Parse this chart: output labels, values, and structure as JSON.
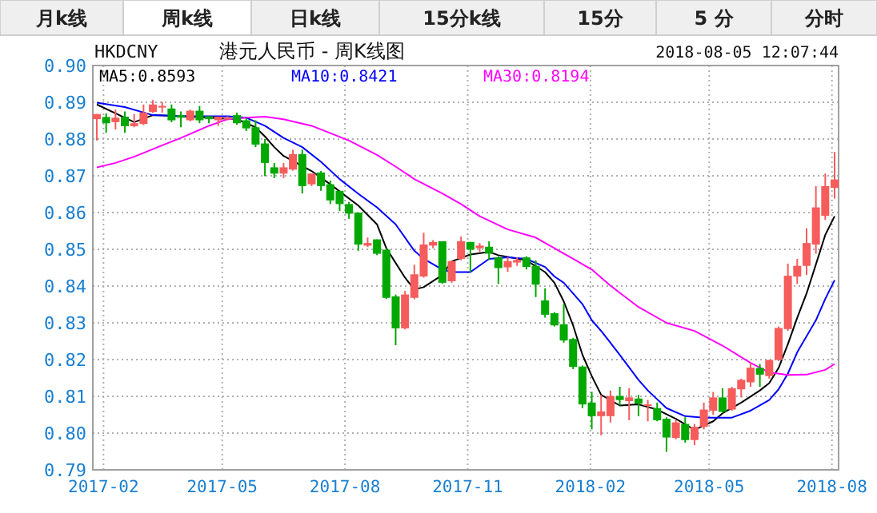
{
  "chart_data": {
    "type": "candlestick",
    "title": "港元人民币 - 周K线图",
    "subtitle": "HKDCNY",
    "annotations": [
      "2018-08-05 12:07:44",
      "月k线",
      "周k线",
      "日k线",
      "15分k线",
      "15分",
      "5 分",
      "分时"
    ],
    "x": [
      "2017-01-27",
      "2017-02-03",
      "2017-02-10",
      "2017-02-17",
      "2017-02-24",
      "2017-03-03",
      "2017-03-10",
      "2017-03-17",
      "2017-03-24",
      "2017-03-31",
      "2017-04-07",
      "2017-04-14",
      "2017-04-21",
      "2017-04-28",
      "2017-05-05",
      "2017-05-12",
      "2017-05-19",
      "2017-05-26",
      "2017-06-02",
      "2017-06-09",
      "2017-06-16",
      "2017-06-23",
      "2017-06-30",
      "2017-07-07",
      "2017-07-14",
      "2017-07-21",
      "2017-07-28",
      "2017-08-04",
      "2017-08-11",
      "2017-08-18",
      "2017-08-25",
      "2017-09-01",
      "2017-09-08",
      "2017-09-15",
      "2017-09-22",
      "2017-09-29",
      "2017-10-06",
      "2017-10-13",
      "2017-10-20",
      "2017-10-27",
      "2017-11-03",
      "2017-11-10",
      "2017-11-17",
      "2017-11-24",
      "2017-12-01",
      "2017-12-08",
      "2017-12-15",
      "2017-12-22",
      "2017-12-29",
      "2018-01-05",
      "2018-01-12",
      "2018-01-19",
      "2018-01-26",
      "2018-02-02",
      "2018-02-09",
      "2018-02-16",
      "2018-02-23",
      "2018-03-02",
      "2018-03-09",
      "2018-03-16",
      "2018-03-23",
      "2018-03-30",
      "2018-04-06",
      "2018-04-13",
      "2018-04-20",
      "2018-04-27",
      "2018-05-04",
      "2018-05-11",
      "2018-05-18",
      "2018-05-25",
      "2018-06-01",
      "2018-06-08",
      "2018-06-15",
      "2018-06-22",
      "2018-06-29",
      "2018-07-06",
      "2018-07-13",
      "2018-07-20",
      "2018-07-27",
      "2018-08-03"
    ],
    "ohlc": [
      [
        0.8854,
        0.8868,
        0.8796,
        0.8868
      ],
      [
        0.886,
        0.887,
        0.8817,
        0.8843
      ],
      [
        0.8846,
        0.888,
        0.8826,
        0.8858
      ],
      [
        0.8861,
        0.8875,
        0.8817,
        0.8835
      ],
      [
        0.8835,
        0.8868,
        0.8832,
        0.8843
      ],
      [
        0.8841,
        0.8894,
        0.8838,
        0.8872
      ],
      [
        0.8874,
        0.8906,
        0.8871,
        0.8894
      ],
      [
        0.8887,
        0.8901,
        0.8872,
        0.889
      ],
      [
        0.8883,
        0.8894,
        0.8846,
        0.8851
      ],
      [
        0.8865,
        0.8875,
        0.8832,
        0.8858
      ],
      [
        0.8851,
        0.888,
        0.8848,
        0.8877
      ],
      [
        0.8877,
        0.889,
        0.8843,
        0.8851
      ],
      [
        0.8862,
        0.8862,
        0.8843,
        0.8854
      ],
      [
        0.8851,
        0.8861,
        0.8836,
        0.8861
      ],
      [
        0.8854,
        0.8862,
        0.8851,
        0.8858
      ],
      [
        0.8865,
        0.8872,
        0.8839,
        0.8843
      ],
      [
        0.8851,
        0.8858,
        0.8822,
        0.8829
      ],
      [
        0.8832,
        0.8851,
        0.8778,
        0.8785
      ],
      [
        0.8788,
        0.88,
        0.8699,
        0.8735
      ],
      [
        0.8723,
        0.8735,
        0.8694,
        0.8706
      ],
      [
        0.8706,
        0.8735,
        0.8694,
        0.8723
      ],
      [
        0.8717,
        0.8771,
        0.8714,
        0.8759
      ],
      [
        0.8759,
        0.8771,
        0.8652,
        0.8672
      ],
      [
        0.8677,
        0.8706,
        0.8672,
        0.8706
      ],
      [
        0.8709,
        0.8713,
        0.8659,
        0.8672
      ],
      [
        0.8677,
        0.8687,
        0.8623,
        0.8633
      ],
      [
        0.8659,
        0.8659,
        0.8604,
        0.8623
      ],
      [
        0.8623,
        0.8629,
        0.8583,
        0.8597
      ],
      [
        0.86,
        0.86,
        0.8496,
        0.8513
      ],
      [
        0.851,
        0.8532,
        0.8506,
        0.8517
      ],
      [
        0.8527,
        0.8527,
        0.8484,
        0.8488
      ],
      [
        0.8499,
        0.8503,
        0.8365,
        0.8368
      ],
      [
        0.8372,
        0.8377,
        0.8239,
        0.8285
      ],
      [
        0.8285,
        0.8387,
        0.8282,
        0.8377
      ],
      [
        0.8368,
        0.8458,
        0.8364,
        0.8432
      ],
      [
        0.8426,
        0.8545,
        0.8423,
        0.8513
      ],
      [
        0.851,
        0.8525,
        0.8503,
        0.852
      ],
      [
        0.8522,
        0.8522,
        0.8406,
        0.8409
      ],
      [
        0.8413,
        0.8468,
        0.8409,
        0.8468
      ],
      [
        0.8474,
        0.8535,
        0.847,
        0.8522
      ],
      [
        0.852,
        0.852,
        0.8438,
        0.8499
      ],
      [
        0.8503,
        0.8517,
        0.8493,
        0.851
      ],
      [
        0.8507,
        0.8522,
        0.8471,
        0.8488
      ],
      [
        0.8478,
        0.8481,
        0.8406,
        0.8449
      ],
      [
        0.8451,
        0.8478,
        0.8439,
        0.8468
      ],
      [
        0.8464,
        0.8478,
        0.8455,
        0.8471
      ],
      [
        0.8478,
        0.8481,
        0.8445,
        0.8452
      ],
      [
        0.8455,
        0.847,
        0.837,
        0.8404
      ],
      [
        0.8361,
        0.8394,
        0.8314,
        0.8322
      ],
      [
        0.8326,
        0.8329,
        0.829,
        0.8293
      ],
      [
        0.8296,
        0.8351,
        0.8246,
        0.8252
      ],
      [
        0.8256,
        0.8259,
        0.8174,
        0.818
      ],
      [
        0.8181,
        0.8184,
        0.8068,
        0.8078
      ],
      [
        0.8083,
        0.8112,
        0.801,
        0.8046
      ],
      [
        0.8046,
        0.8104,
        0.7994,
        0.8059
      ],
      [
        0.8046,
        0.8116,
        0.8029,
        0.8101
      ],
      [
        0.8101,
        0.8126,
        0.8075,
        0.809
      ],
      [
        0.8087,
        0.8122,
        0.8035,
        0.8097
      ],
      [
        0.8094,
        0.8104,
        0.8046,
        0.808
      ],
      [
        0.8075,
        0.809,
        0.8032,
        0.8078
      ],
      [
        0.8068,
        0.8083,
        0.8032,
        0.8035
      ],
      [
        0.8039,
        0.8043,
        0.7949,
        0.7988
      ],
      [
        0.7987,
        0.8035,
        0.7983,
        0.8029
      ],
      [
        0.8025,
        0.8043,
        0.7974,
        0.7981
      ],
      [
        0.7981,
        0.8025,
        0.7967,
        0.8017
      ],
      [
        0.8017,
        0.8083,
        0.801,
        0.8064
      ],
      [
        0.8061,
        0.8112,
        0.805,
        0.8097
      ],
      [
        0.8097,
        0.8122,
        0.8054,
        0.8058
      ],
      [
        0.8064,
        0.8126,
        0.8061,
        0.8122
      ],
      [
        0.8119,
        0.8148,
        0.8097,
        0.8145
      ],
      [
        0.8138,
        0.8191,
        0.8126,
        0.8178
      ],
      [
        0.8177,
        0.8188,
        0.8126,
        0.8159
      ],
      [
        0.8155,
        0.8199,
        0.8148,
        0.8199
      ],
      [
        0.8199,
        0.829,
        0.8196,
        0.8286
      ],
      [
        0.8283,
        0.8461,
        0.8278,
        0.8428
      ],
      [
        0.8426,
        0.8474,
        0.8406,
        0.8455
      ],
      [
        0.8455,
        0.8557,
        0.843,
        0.8517
      ],
      [
        0.8513,
        0.8672,
        0.8488,
        0.8614
      ],
      [
        0.8591,
        0.8706,
        0.858,
        0.8672
      ],
      [
        0.8667,
        0.8765,
        0.8638,
        0.869
      ]
    ],
    "colors": [
      "#f65c5c",
      "#00a800",
      "#f65c5c",
      "#00a800",
      "#f65c5c",
      "#f65c5c",
      "#f65c5c",
      "#f65c5c",
      "#00a800",
      "#00a800",
      "#f65c5c",
      "#00a800",
      "#00a800",
      "#f65c5c",
      "#f65c5c",
      "#00a800",
      "#00a800",
      "#00a800",
      "#00a800",
      "#00a800",
      "#f65c5c",
      "#f65c5c",
      "#00a800",
      "#f65c5c",
      "#00a800",
      "#00a800",
      "#00a800",
      "#00a800",
      "#00a800",
      "#f65c5c",
      "#00a800",
      "#00a800",
      "#00a800",
      "#f65c5c",
      "#f65c5c",
      "#f65c5c",
      "#f65c5c",
      "#00a800",
      "#f65c5c",
      "#f65c5c",
      "#00a800",
      "#f65c5c",
      "#00a800",
      "#00a800",
      "#f65c5c",
      "#f65c5c",
      "#00a800",
      "#00a800",
      "#00a800",
      "#00a800",
      "#00a800",
      "#00a800",
      "#00a800",
      "#00a800",
      "#f65c5c",
      "#f65c5c",
      "#00a800",
      "#f65c5c",
      "#00a800",
      "#f65c5c",
      "#00a800",
      "#00a800",
      "#f65c5c",
      "#00a800",
      "#f65c5c",
      "#f65c5c",
      "#f65c5c",
      "#00a800",
      "#f65c5c",
      "#f65c5c",
      "#f65c5c",
      "#00a800",
      "#f65c5c",
      "#f65c5c",
      "#f65c5c",
      "#f65c5c",
      "#f65c5c",
      "#f65c5c",
      "#f65c5c",
      "#f65c5c"
    ],
    "series": [
      {
        "type": "line",
        "name": "MA5:0.8593",
        "color": "#000000",
        "x": [
          "2017-01-27",
          "2017-02-17",
          "2017-02-24",
          "2017-03-10",
          "2017-03-31",
          "2017-04-21",
          "2017-05-12",
          "2017-05-26",
          "2017-06-02",
          "2017-06-09",
          "2017-06-16",
          "2017-07-07",
          "2017-07-21",
          "2017-08-11",
          "2017-08-25",
          "2017-09-01",
          "2017-09-15",
          "2017-09-22",
          "2017-09-29",
          "2017-10-13",
          "2017-10-20",
          "2017-11-03",
          "2017-11-17",
          "2017-11-24",
          "2017-12-15",
          "2017-12-29",
          "2018-01-05",
          "2018-01-12",
          "2018-01-19",
          "2018-01-26",
          "2018-02-02",
          "2018-02-09",
          "2018-02-23",
          "2018-03-09",
          "2018-03-23",
          "2018-04-06",
          "2018-04-20",
          "2018-05-04",
          "2018-05-11",
          "2018-05-25",
          "2018-06-08",
          "2018-06-15",
          "2018-06-22",
          "2018-06-29",
          "2018-07-06",
          "2018-07-13",
          "2018-07-20",
          "2018-07-27",
          "2018-08-03"
        ],
        "values": [
          0.8894,
          0.8858,
          0.8846,
          0.8865,
          0.8862,
          0.8858,
          0.8854,
          0.8832,
          0.8807,
          0.8778,
          0.8754,
          0.8713,
          0.8677,
          0.8619,
          0.8568,
          0.8503,
          0.8423,
          0.8391,
          0.8397,
          0.843,
          0.8467,
          0.8486,
          0.8493,
          0.8484,
          0.847,
          0.8438,
          0.8409,
          0.8358,
          0.8293,
          0.8213,
          0.8155,
          0.8104,
          0.8075,
          0.8078,
          0.8064,
          0.8039,
          0.8009,
          0.8032,
          0.8054,
          0.8083,
          0.8116,
          0.8136,
          0.8177,
          0.8242,
          0.8314,
          0.838,
          0.8459,
          0.8539,
          0.859
        ]
      },
      {
        "type": "line",
        "name": "MA10:0.8421",
        "color": "#0000ff",
        "x": [
          "2017-01-27",
          "2017-02-17",
          "2017-03-10",
          "2017-04-07",
          "2017-05-05",
          "2017-05-19",
          "2017-06-02",
          "2017-06-16",
          "2017-06-30",
          "2017-07-14",
          "2017-07-28",
          "2017-08-11",
          "2017-08-25",
          "2017-09-08",
          "2017-09-22",
          "2017-09-29",
          "2017-10-13",
          "2017-10-20",
          "2017-11-03",
          "2017-11-17",
          "2017-12-01",
          "2017-12-15",
          "2017-12-29",
          "2018-01-05",
          "2018-01-12",
          "2018-01-26",
          "2018-02-02",
          "2018-02-09",
          "2018-02-23",
          "2018-03-09",
          "2018-03-16",
          "2018-03-30",
          "2018-04-13",
          "2018-04-27",
          "2018-05-18",
          "2018-06-01",
          "2018-06-15",
          "2018-06-22",
          "2018-06-29",
          "2018-07-06",
          "2018-07-20",
          "2018-07-27",
          "2018-08-03"
        ],
        "values": [
          0.8899,
          0.8887,
          0.8865,
          0.8862,
          0.8862,
          0.8858,
          0.8836,
          0.8803,
          0.8778,
          0.8738,
          0.8691,
          0.8651,
          0.8614,
          0.8568,
          0.8496,
          0.8474,
          0.8445,
          0.8438,
          0.8438,
          0.8474,
          0.8478,
          0.8474,
          0.8452,
          0.8426,
          0.8409,
          0.8351,
          0.8307,
          0.8278,
          0.8213,
          0.8145,
          0.8116,
          0.8068,
          0.8046,
          0.8042,
          0.8042,
          0.8061,
          0.809,
          0.8119,
          0.8162,
          0.822,
          0.8307,
          0.8365,
          0.8416
        ]
      },
      {
        "type": "line",
        "name": "MA30:0.8194",
        "color": "#ff00ff",
        "x": [
          "2017-01-27",
          "2017-02-10",
          "2017-02-24",
          "2017-03-17",
          "2017-03-31",
          "2017-04-21",
          "2017-05-05",
          "2017-05-19",
          "2017-06-02",
          "2017-06-16",
          "2017-07-07",
          "2017-08-04",
          "2017-08-25",
          "2017-09-08",
          "2017-09-22",
          "2017-10-13",
          "2017-10-27",
          "2017-11-10",
          "2017-12-01",
          "2017-12-22",
          "2018-01-05",
          "2018-01-19",
          "2018-02-02",
          "2018-02-16",
          "2018-03-09",
          "2018-03-30",
          "2018-04-20",
          "2018-05-11",
          "2018-06-01",
          "2018-06-15",
          "2018-06-29",
          "2018-07-13",
          "2018-07-27",
          "2018-08-03"
        ],
        "values": [
          0.8723,
          0.8735,
          0.8752,
          0.8783,
          0.8803,
          0.8836,
          0.8854,
          0.8858,
          0.8861,
          0.8854,
          0.8836,
          0.8796,
          0.8757,
          0.8725,
          0.8691,
          0.8652,
          0.8623,
          0.859,
          0.8554,
          0.8532,
          0.8503,
          0.8474,
          0.8445,
          0.8401,
          0.8343,
          0.83,
          0.8278,
          0.8238,
          0.8191,
          0.8165,
          0.8158,
          0.8159,
          0.8172,
          0.8188
        ]
      }
    ],
    "xlim": [
      "2017-01-24",
      "2018-08-06"
    ],
    "xticks": [
      {
        "value": "2017-02",
        "label": "2017-02"
      },
      {
        "value": "2017-05",
        "label": "2017-05"
      },
      {
        "value": "2017-08",
        "label": "2017-08"
      },
      {
        "value": "2017-11",
        "label": "2017-11"
      },
      {
        "value": "2018-02",
        "label": "2018-02"
      },
      {
        "value": "2018-05",
        "label": "2018-05"
      },
      {
        "value": "2018-08",
        "label": "2018-08"
      }
    ],
    "ylim": [
      0.79,
      0.9
    ],
    "yticks": [
      {
        "value": 0.79,
        "label": "0.79"
      },
      {
        "value": 0.8,
        "label": "0.80"
      },
      {
        "value": 0.81,
        "label": "0.81"
      },
      {
        "value": 0.82,
        "label": "0.82"
      },
      {
        "value": 0.83,
        "label": "0.83"
      },
      {
        "value": 0.84,
        "label": "0.84"
      },
      {
        "value": 0.85,
        "label": "0.85"
      },
      {
        "value": 0.86,
        "label": "0.86"
      },
      {
        "value": 0.87,
        "label": "0.87"
      },
      {
        "value": 0.88,
        "label": "0.88"
      },
      {
        "value": 0.89,
        "label": "0.89"
      },
      {
        "value": 0.9,
        "label": "0.90"
      }
    ],
    "grid": true,
    "legend": "top left"
  }
}
